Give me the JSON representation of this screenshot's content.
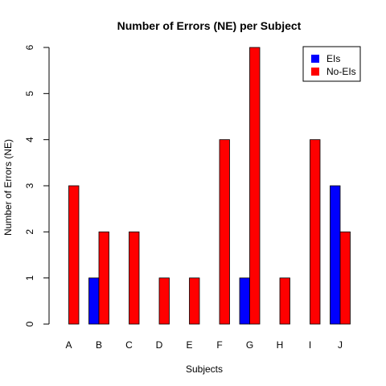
{
  "chart_data": {
    "type": "bar",
    "title": "Number of Errors (NE) per Subject",
    "xlabel": "Subjects",
    "ylabel": "Number of Errors (NE)",
    "categories": [
      "A",
      "B",
      "C",
      "D",
      "E",
      "F",
      "G",
      "H",
      "I",
      "J"
    ],
    "series": [
      {
        "name": "EIs",
        "color": "#0000ff",
        "values": [
          0,
          1,
          0,
          0,
          0,
          0,
          1,
          0,
          0,
          3
        ]
      },
      {
        "name": "No-EIs",
        "color": "#ff0000",
        "values": [
          3,
          2,
          2,
          1,
          1,
          4,
          6,
          1,
          4,
          2
        ]
      }
    ],
    "ylim": [
      0,
      6
    ],
    "yticks": [
      "0",
      "1",
      "2",
      "3",
      "4",
      "5",
      "6"
    ],
    "grid": false,
    "legend_position": "top-right",
    "bar_border_color": "#000000"
  }
}
